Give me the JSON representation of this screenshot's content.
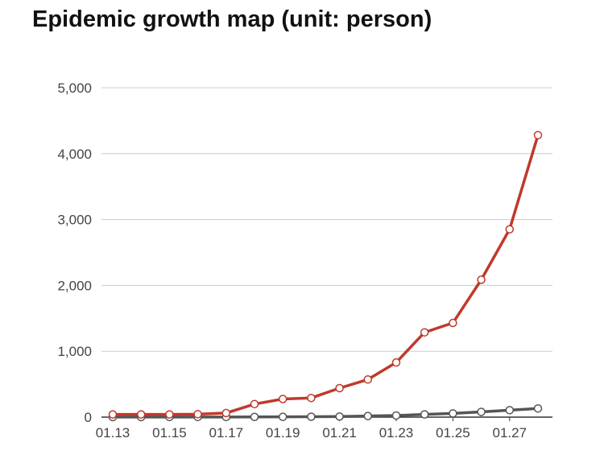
{
  "title": "Epidemic growth map (unit: person)",
  "chart_data": {
    "type": "line",
    "title": "Epidemic growth map (unit: person)",
    "xlabel": "",
    "ylabel": "",
    "x": [
      "01.13",
      "01.14",
      "01.15",
      "01.16",
      "01.17",
      "01.18",
      "01.19",
      "01.20",
      "01.21",
      "01.22",
      "01.23",
      "01.24",
      "01.25",
      "01.26",
      "01.27",
      "01.28"
    ],
    "x_tick_labels": [
      "01.13",
      "01.15",
      "01.17",
      "01.19",
      "01.21",
      "01.23",
      "01.25",
      "01.27"
    ],
    "ylim": [
      0,
      5000
    ],
    "y_ticks": [
      0,
      1000,
      2000,
      3000,
      4000,
      5000
    ],
    "y_tick_labels": [
      "0",
      "1,000",
      "2,000",
      "3,000",
      "4,000",
      "5,000"
    ],
    "grid": "horizontal",
    "legend": "none",
    "series": [
      {
        "color": "#c0392b",
        "values": [
          41,
          41,
          41,
          45,
          62,
          198,
          275,
          291,
          440,
          571,
          830,
          1287,
          1430,
          2086,
          2852,
          4281
        ]
      },
      {
        "color": "#555555",
        "values": [
          1,
          1,
          2,
          2,
          2,
          3,
          4,
          6,
          9,
          17,
          25,
          41,
          56,
          80,
          106,
          132
        ]
      }
    ]
  }
}
